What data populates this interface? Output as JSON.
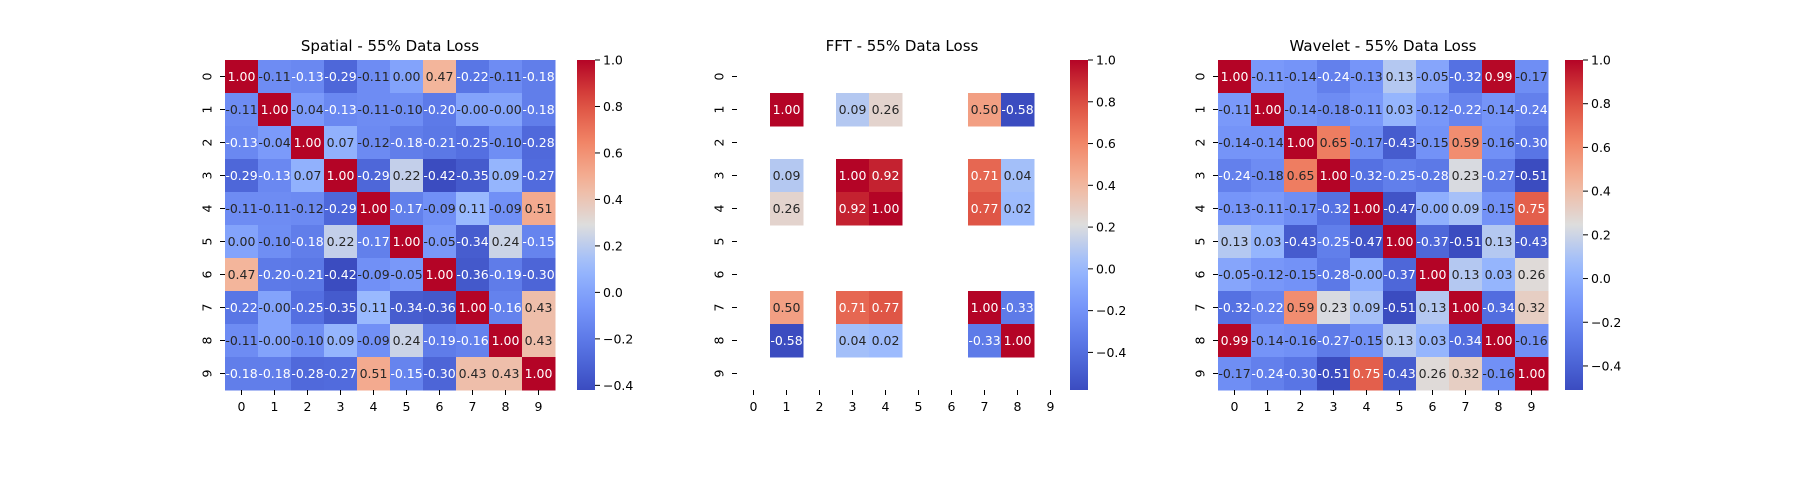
{
  "chart_data": [
    {
      "type": "heatmap",
      "title": "Spatial - 55% Data Loss",
      "x": [
        "0",
        "1",
        "2",
        "3",
        "4",
        "5",
        "6",
        "7",
        "8",
        "9"
      ],
      "y": [
        "0",
        "1",
        "2",
        "3",
        "4",
        "5",
        "6",
        "7",
        "8",
        "9"
      ],
      "colormap": "coolwarm",
      "vmin": -0.42,
      "vmax": 1.0,
      "colorbar_ticks": [
        "1.0",
        "0.8",
        "0.6",
        "0.4",
        "0.2",
        "0.0",
        "−0.2",
        "−0.4"
      ],
      "annot": [
        [
          "1.00",
          "-0.11",
          "-0.13",
          "-0.29",
          "-0.11",
          "0.00",
          "0.47",
          "-0.22",
          "-0.11",
          "-0.18"
        ],
        [
          "-0.11",
          "1.00",
          "-0.04",
          "-0.13",
          "-0.11",
          "-0.10",
          "-0.20",
          "-0.00",
          "-0.00",
          "-0.18"
        ],
        [
          "-0.13",
          "-0.04",
          "1.00",
          "0.07",
          "-0.12",
          "-0.18",
          "-0.21",
          "-0.25",
          "-0.10",
          "-0.28"
        ],
        [
          "-0.29",
          "-0.13",
          "0.07",
          "1.00",
          "-0.29",
          "0.22",
          "-0.42",
          "-0.35",
          "0.09",
          "-0.27"
        ],
        [
          "-0.11",
          "-0.11",
          "-0.12",
          "-0.29",
          "1.00",
          "-0.17",
          "-0.09",
          "0.11",
          "-0.09",
          "0.51"
        ],
        [
          "0.00",
          "-0.10",
          "-0.18",
          "0.22",
          "-0.17",
          "1.00",
          "-0.05",
          "-0.34",
          "0.24",
          "-0.15"
        ],
        [
          "0.47",
          "-0.20",
          "-0.21",
          "-0.42",
          "-0.09",
          "-0.05",
          "1.00",
          "-0.36",
          "-0.19",
          "-0.30"
        ],
        [
          "-0.22",
          "-0.00",
          "-0.25",
          "-0.35",
          "0.11",
          "-0.34",
          "-0.36",
          "1.00",
          "-0.16",
          "0.43"
        ],
        [
          "-0.11",
          "-0.00",
          "-0.10",
          "0.09",
          "-0.09",
          "0.24",
          "-0.19",
          "-0.16",
          "1.00",
          "0.43"
        ],
        [
          "-0.18",
          "-0.18",
          "-0.28",
          "-0.27",
          "0.51",
          "-0.15",
          "-0.30",
          "0.43",
          "0.43",
          "1.00"
        ]
      ]
    },
    {
      "type": "heatmap",
      "title": "FFT - 55% Data Loss",
      "x": [
        "0",
        "1",
        "2",
        "3",
        "4",
        "5",
        "6",
        "7",
        "8",
        "9"
      ],
      "y": [
        "0",
        "1",
        "2",
        "3",
        "4",
        "5",
        "6",
        "7",
        "8",
        "9"
      ],
      "colormap": "coolwarm",
      "vmin": -0.58,
      "vmax": 1.0,
      "colorbar_ticks": [
        "1.0",
        "0.8",
        "0.6",
        "0.4",
        "0.2",
        "0.0",
        "−0.2",
        "−0.4"
      ],
      "annot": [
        [
          "",
          "",
          "",
          "",
          "",
          "",
          "",
          "",
          "",
          ""
        ],
        [
          "",
          "1.00",
          "",
          "0.09",
          "0.26",
          "",
          "",
          "0.50",
          "-0.58",
          ""
        ],
        [
          "",
          "",
          "",
          "",
          "",
          "",
          "",
          "",
          "",
          ""
        ],
        [
          "",
          "0.09",
          "",
          "1.00",
          "0.92",
          "",
          "",
          "0.71",
          "0.04",
          ""
        ],
        [
          "",
          "0.26",
          "",
          "0.92",
          "1.00",
          "",
          "",
          "0.77",
          "0.02",
          ""
        ],
        [
          "",
          "",
          "",
          "",
          "",
          "",
          "",
          "",
          "",
          ""
        ],
        [
          "",
          "",
          "",
          "",
          "",
          "",
          "",
          "",
          "",
          ""
        ],
        [
          "",
          "0.50",
          "",
          "0.71",
          "0.77",
          "",
          "",
          "1.00",
          "-0.33",
          ""
        ],
        [
          "",
          "-0.58",
          "",
          "0.04",
          "0.02",
          "",
          "",
          "-0.33",
          "1.00",
          ""
        ],
        [
          "",
          "",
          "",
          "",
          "",
          "",
          "",
          "",
          "",
          ""
        ]
      ]
    },
    {
      "type": "heatmap",
      "title": "Wavelet - 55% Data Loss",
      "x": [
        "0",
        "1",
        "2",
        "3",
        "4",
        "5",
        "6",
        "7",
        "8",
        "9"
      ],
      "y": [
        "0",
        "1",
        "2",
        "3",
        "4",
        "5",
        "6",
        "7",
        "8",
        "9"
      ],
      "colormap": "coolwarm",
      "vmin": -0.51,
      "vmax": 1.0,
      "colorbar_ticks": [
        "1.0",
        "0.8",
        "0.6",
        "0.4",
        "0.2",
        "0.0",
        "−0.2",
        "−0.4"
      ],
      "annot": [
        [
          "1.00",
          "-0.11",
          "-0.14",
          "-0.24",
          "-0.13",
          "0.13",
          "-0.05",
          "-0.32",
          "0.99",
          "-0.17"
        ],
        [
          "-0.11",
          "1.00",
          "-0.14",
          "-0.18",
          "-0.11",
          "0.03",
          "-0.12",
          "-0.22",
          "-0.14",
          "-0.24"
        ],
        [
          "-0.14",
          "-0.14",
          "1.00",
          "0.65",
          "-0.17",
          "-0.43",
          "-0.15",
          "0.59",
          "-0.16",
          "-0.30"
        ],
        [
          "-0.24",
          "-0.18",
          "0.65",
          "1.00",
          "-0.32",
          "-0.25",
          "-0.28",
          "0.23",
          "-0.27",
          "-0.51"
        ],
        [
          "-0.13",
          "-0.11",
          "-0.17",
          "-0.32",
          "1.00",
          "-0.47",
          "-0.00",
          "0.09",
          "-0.15",
          "0.75"
        ],
        [
          "0.13",
          "0.03",
          "-0.43",
          "-0.25",
          "-0.47",
          "1.00",
          "-0.37",
          "-0.51",
          "0.13",
          "-0.43"
        ],
        [
          "-0.05",
          "-0.12",
          "-0.15",
          "-0.28",
          "-0.00",
          "-0.37",
          "1.00",
          "0.13",
          "0.03",
          "0.26"
        ],
        [
          "-0.32",
          "-0.22",
          "0.59",
          "0.23",
          "0.09",
          "-0.51",
          "0.13",
          "1.00",
          "-0.34",
          "0.32"
        ],
        [
          "0.99",
          "-0.14",
          "-0.16",
          "-0.27",
          "-0.15",
          "0.13",
          "0.03",
          "-0.34",
          "1.00",
          "-0.16"
        ],
        [
          "-0.17",
          "-0.24",
          "-0.30",
          "-0.51",
          "0.75",
          "-0.43",
          "0.26",
          "0.32",
          "-0.16",
          "1.00"
        ]
      ]
    }
  ]
}
